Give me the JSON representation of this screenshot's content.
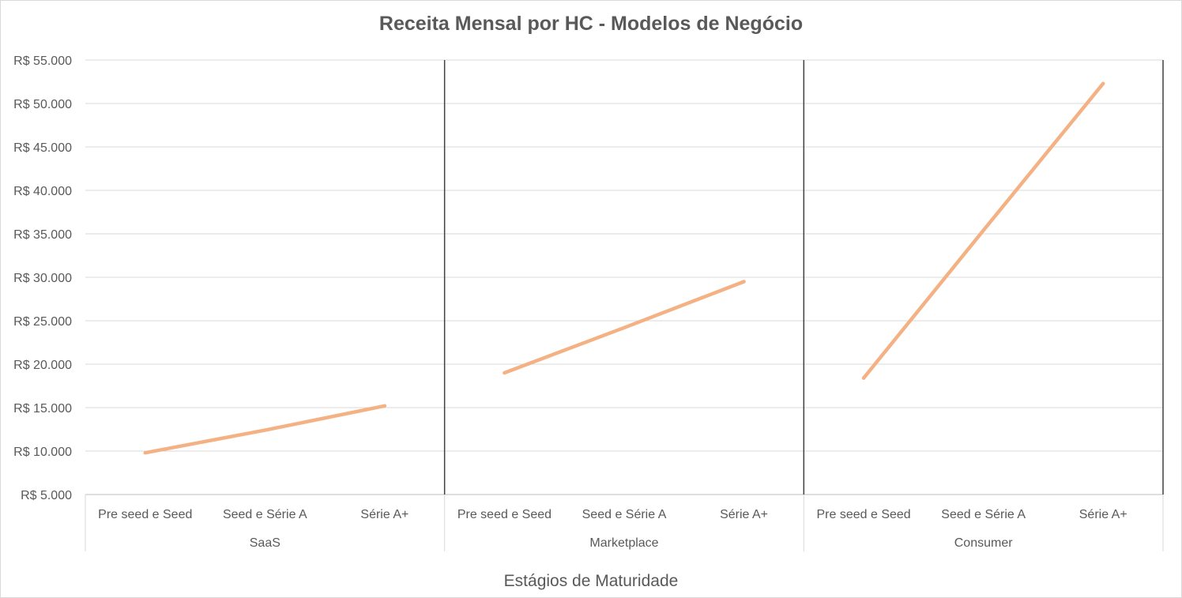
{
  "chart_data": {
    "type": "line",
    "title": "Receita Mensal por HC - Modelos de Negócio",
    "xlabel": "Estágios de Maturidade",
    "ylabel": "",
    "ylim": [
      5000,
      55000
    ],
    "ytick_values": [
      5000,
      10000,
      15000,
      20000,
      25000,
      30000,
      35000,
      40000,
      45000,
      50000,
      55000
    ],
    "ytick_labels": [
      "R$ 5.000",
      "R$ 10.000",
      "R$ 15.000",
      "R$ 20.000",
      "R$ 25.000",
      "R$ 30.000",
      "R$ 35.000",
      "R$ 40.000",
      "R$ 45.000",
      "R$ 50.000",
      "R$ 55.000"
    ],
    "grid": true,
    "legend": "none",
    "color": "#f4b183",
    "groups": [
      {
        "label": "SaaS",
        "categories": [
          "Pre seed e Seed",
          "Seed e Série A",
          "Série A+"
        ],
        "values": [
          9800,
          12400,
          15200
        ]
      },
      {
        "label": "Marketplace",
        "categories": [
          "Pre seed e Seed",
          "Seed e Série A",
          "Série A+"
        ],
        "values": [
          19000,
          24200,
          29500
        ]
      },
      {
        "label": "Consumer",
        "categories": [
          "Pre seed e Seed",
          "Seed e Série A",
          "Série A+"
        ],
        "values": [
          18400,
          35400,
          52300
        ]
      }
    ]
  }
}
